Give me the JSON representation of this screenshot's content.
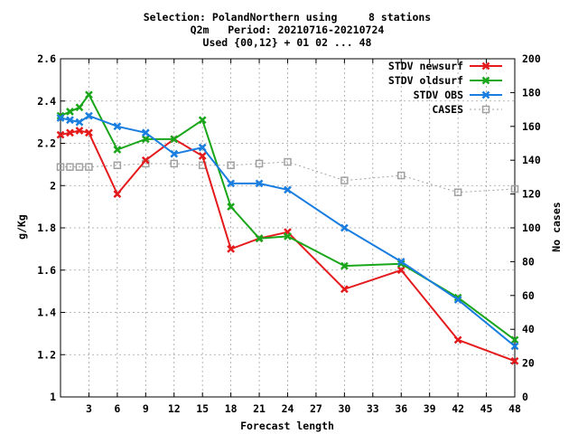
{
  "chart_data": {
    "type": "line",
    "title": [
      "Selection: PolandNorthern using     8 stations",
      "Q2m   Period: 20210716-20210724",
      "Used {00,12} + 01 02 ... 48"
    ],
    "xlabel": "Forecast length",
    "ylabel": "g/Kg",
    "y2label": "No cases",
    "xlim": [
      0,
      48
    ],
    "ylim": [
      1,
      2.6
    ],
    "y2lim": [
      0,
      200
    ],
    "xticks": [
      3,
      6,
      9,
      12,
      15,
      18,
      21,
      24,
      27,
      30,
      33,
      36,
      39,
      42,
      45,
      48
    ],
    "yticks": [
      1,
      1.2,
      1.4,
      1.6,
      1.8,
      2,
      2.2,
      2.4,
      2.6
    ],
    "ytick_labels": [
      "1",
      "1.2",
      "1.4",
      "1.6",
      "1.8",
      "2",
      "2.2",
      "2.4",
      "2.6"
    ],
    "y2ticks": [
      0,
      20,
      40,
      60,
      80,
      100,
      120,
      140,
      160,
      180,
      200
    ],
    "grid": true,
    "legend_position": "top-right",
    "series": [
      {
        "name": "STDV newsurf",
        "color": "#e41a1c",
        "axis": "left",
        "marker": "x",
        "x": [
          0,
          1,
          2,
          3,
          6,
          9,
          12,
          15,
          18,
          21,
          24,
          30,
          36,
          42,
          48
        ],
        "y": [
          2.24,
          2.25,
          2.26,
          2.25,
          1.96,
          2.12,
          2.22,
          2.14,
          1.7,
          1.75,
          1.78,
          1.51,
          1.6,
          1.27,
          1.17
        ]
      },
      {
        "name": "STDV oldsurf",
        "color": "#1aa61a",
        "axis": "left",
        "marker": "x",
        "x": [
          0,
          1,
          2,
          3,
          6,
          9,
          12,
          15,
          18,
          21,
          24,
          30,
          36,
          42,
          48
        ],
        "y": [
          2.33,
          2.35,
          2.37,
          2.43,
          2.17,
          2.22,
          2.22,
          2.31,
          1.9,
          1.75,
          1.76,
          1.62,
          1.63,
          1.47,
          1.27
        ]
      },
      {
        "name": "STDV OBS",
        "color": "#1a7de0",
        "axis": "left",
        "marker": "x",
        "x": [
          0,
          1,
          2,
          3,
          6,
          9,
          12,
          15,
          18,
          21,
          24,
          30,
          36,
          42,
          48
        ],
        "y": [
          2.32,
          2.31,
          2.3,
          2.33,
          2.28,
          2.25,
          2.15,
          2.18,
          2.01,
          2.01,
          1.98,
          1.8,
          1.64,
          1.46,
          1.24
        ]
      },
      {
        "name": "CASES",
        "color": "#a0a0a0",
        "axis": "right",
        "marker": "square",
        "dashed": true,
        "x": [
          0,
          1,
          2,
          3,
          6,
          9,
          12,
          15,
          18,
          21,
          24,
          30,
          36,
          42,
          48
        ],
        "y": [
          136,
          136,
          136,
          136,
          137,
          138,
          138,
          137,
          137,
          138,
          139,
          128,
          131,
          121,
          123
        ]
      }
    ]
  }
}
